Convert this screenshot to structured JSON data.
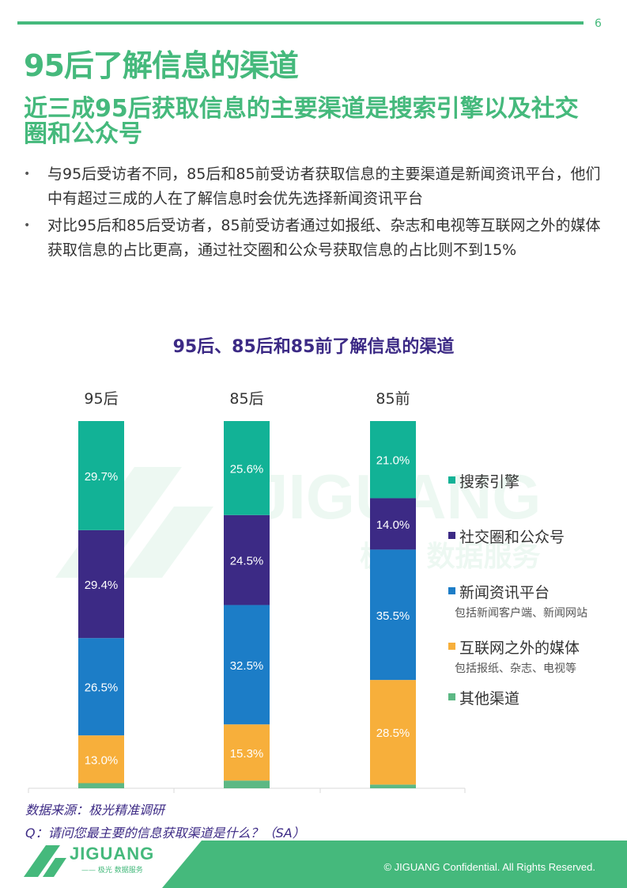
{
  "page_number": "6",
  "title": "95后了解信息的渠道",
  "subtitle": "近三成95后获取信息的主要渠道是搜索引擎以及社交圈和公众号",
  "bullets": [
    "与95后受访者不同，85后和85前受访者获取信息的主要渠道是新闻资讯平台，他们中有超过三成的人在了解信息时会优先选择新闻资讯平台",
    "对比95后和85后受访者，85前受访者通过如报纸、杂志和电视等互联网之外的媒体获取信息的占比更高，通过社交圈和公众号获取信息的占比则不到15%"
  ],
  "bullet_symbol": "•",
  "chart_data": {
    "type": "bar",
    "stacked": true,
    "title": "95后、85后和85前了解信息的渠道",
    "categories": [
      "95后",
      "85后",
      "85前"
    ],
    "unit": "%",
    "series": [
      {
        "name": "其他渠道",
        "color": "#5cb884",
        "values": [
          1.4,
          2.1,
          1.0
        ],
        "labels": [
          "",
          "",
          ""
        ]
      },
      {
        "name": "互联网之外的媒体",
        "note": "包括报纸、杂志、电视等",
        "color": "#f7af3b",
        "values": [
          13.0,
          15.3,
          28.5
        ],
        "labels": [
          "13.0%",
          "15.3%",
          "28.5%"
        ]
      },
      {
        "name": "新闻资讯平台",
        "note": "包括新闻客户端、新闻网站",
        "color": "#1c7dc7",
        "values": [
          26.5,
          32.5,
          35.5
        ],
        "labels": [
          "26.5%",
          "32.5%",
          "35.5%"
        ]
      },
      {
        "name": "社交圈和公众号",
        "color": "#3c2a85",
        "values": [
          29.4,
          24.5,
          14.0
        ],
        "labels": [
          "29.4%",
          "24.5%",
          "14.0%"
        ]
      },
      {
        "name": "搜索引擎",
        "color": "#12b296",
        "values": [
          29.7,
          25.6,
          21.0
        ],
        "labels": [
          "29.7%",
          "25.6%",
          "21.0%"
        ]
      }
    ],
    "legend": [
      {
        "name": "搜索引擎",
        "color": "#12b296"
      },
      {
        "name": "社交圈和公众号",
        "color": "#3c2a85"
      },
      {
        "name": "新闻资讯平台",
        "color": "#1c7dc7",
        "note": "包括新闻客户端、新闻网站"
      },
      {
        "name": "互联网之外的媒体",
        "color": "#f7af3b",
        "note": "包括报纸、杂志、电视等"
      },
      {
        "name": "其他渠道",
        "color": "#5cb884"
      }
    ],
    "legend_position": "right",
    "grid": false
  },
  "source": "数据来源：极光精准调研",
  "question": "Q：请问您最主要的信息获取渠道是什么？（SA）",
  "watermark": {
    "text": "JIGUANG",
    "sub": "极光 数据服务"
  },
  "footer": {
    "copyright": "© JIGUANG  Confidential. All Rights Reserved.",
    "logo_text": "JIGUANG",
    "logo_sub": "—— 极光 数据服务"
  },
  "colors": {
    "brand_green": "#45b97c",
    "title_purple": "#3c2a85"
  }
}
